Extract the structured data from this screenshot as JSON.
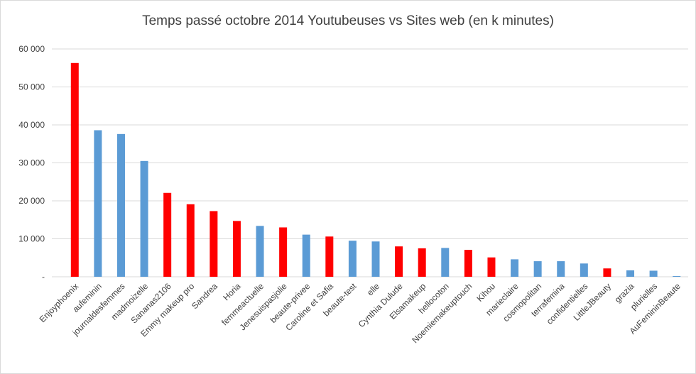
{
  "chart_data": {
    "type": "bar",
    "title": "Temps passé octobre 2014 Youtubeuses vs Sites web (en k minutes)",
    "xlabel": "",
    "ylabel": "",
    "ylim": [
      0,
      60000
    ],
    "y_ticks": [
      {
        "value": 0,
        "label": "-"
      },
      {
        "value": 10000,
        "label": "10 000"
      },
      {
        "value": 20000,
        "label": "20 000"
      },
      {
        "value": 30000,
        "label": "30 000"
      },
      {
        "value": 40000,
        "label": "40 000"
      },
      {
        "value": 50000,
        "label": "50 000"
      },
      {
        "value": 60000,
        "label": "60 000"
      }
    ],
    "grid": true,
    "legend": "none",
    "colors": {
      "youtubeuse": "#ff0000",
      "site_web": "#5b9bd5"
    },
    "categories": [
      "Enjoyphoenix",
      "aufeminin",
      "journaldesfemmes",
      "madmoizelle",
      "Sananas2106",
      "Emmy makeup pro",
      "Sandrea",
      "Horia",
      "femmeactuelle",
      "Jenesuispasjolie",
      "beaute-privee",
      "Caroline et Safia",
      "beaute-test",
      "elle",
      "Cynthia Dulude",
      "Elsamakeup",
      "hellocoton",
      "Noemiemakeuptouch",
      "Kihou",
      "marieclaire",
      "cosmopolitan",
      "terrafemina",
      "confidentielles",
      "LittleJBeauty",
      "grazia",
      "plurielles",
      "AuFemininBeaute"
    ],
    "values": [
      56300,
      38600,
      37600,
      30500,
      22100,
      19100,
      17300,
      14700,
      13400,
      13000,
      11100,
      10600,
      9500,
      9300,
      8000,
      7500,
      7600,
      7100,
      5100,
      4600,
      4100,
      4100,
      3500,
      2200,
      1700,
      1600,
      200
    ],
    "kinds": [
      "youtubeuse",
      "site_web",
      "site_web",
      "site_web",
      "youtubeuse",
      "youtubeuse",
      "youtubeuse",
      "youtubeuse",
      "site_web",
      "youtubeuse",
      "site_web",
      "youtubeuse",
      "site_web",
      "site_web",
      "youtubeuse",
      "youtubeuse",
      "site_web",
      "youtubeuse",
      "youtubeuse",
      "site_web",
      "site_web",
      "site_web",
      "site_web",
      "youtubeuse",
      "site_web",
      "site_web",
      "site_web"
    ]
  }
}
